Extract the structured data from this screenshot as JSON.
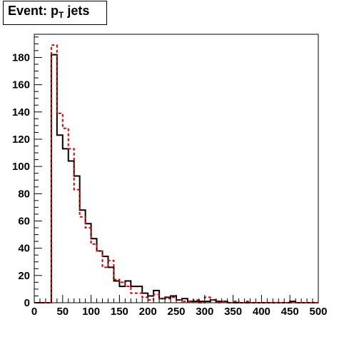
{
  "title": {
    "main": "Event: p",
    "sub": "T",
    "suffix": " jets"
  },
  "chart_data": {
    "type": "histogram",
    "title": "Event: pT jets",
    "xlabel": "",
    "ylabel": "",
    "xlim": [
      0,
      500
    ],
    "ylim": [
      0,
      197
    ],
    "grid": false,
    "x_ticks": [
      0,
      50,
      100,
      150,
      200,
      250,
      300,
      350,
      400,
      450,
      500
    ],
    "y_ticks": [
      0,
      20,
      40,
      60,
      80,
      100,
      120,
      140,
      160,
      180
    ],
    "bin_width": 10,
    "bin_start": 0,
    "series": [
      {
        "style": "solid",
        "color": "#000000",
        "values": [
          0,
          0,
          0,
          182,
          123,
          113,
          104,
          93,
          68,
          58,
          47,
          38,
          34,
          26,
          16,
          12,
          16,
          12,
          12,
          7,
          5,
          9,
          3,
          4,
          5,
          2,
          3,
          1,
          1,
          1,
          1,
          2,
          1,
          1,
          0,
          0,
          0,
          0,
          0,
          0,
          0,
          0,
          0,
          0,
          0,
          1,
          0,
          0,
          0,
          0
        ]
      },
      {
        "style": "dashed",
        "color": "#dd0000",
        "values": [
          0,
          0,
          0,
          189,
          139,
          128,
          113,
          83,
          63,
          55,
          43,
          38,
          26,
          31,
          17,
          15,
          12,
          7,
          7,
          4,
          2,
          6,
          3,
          3,
          4,
          2,
          1,
          1,
          2,
          0,
          4,
          2,
          0,
          1,
          0,
          1,
          0,
          1,
          0,
          0,
          0,
          0,
          0,
          0,
          0,
          0,
          0,
          0,
          0,
          0
        ]
      }
    ]
  }
}
